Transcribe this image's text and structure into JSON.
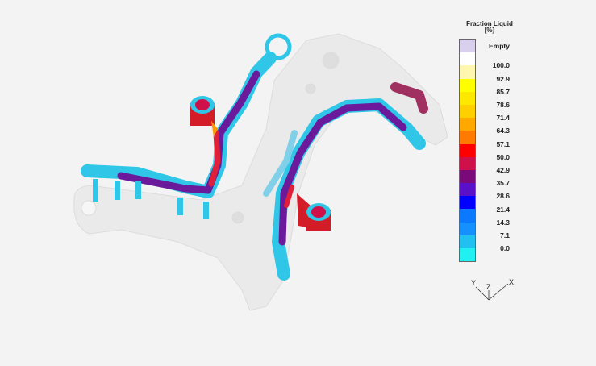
{
  "legend": {
    "title_line1": "Fraction Liquid",
    "title_line2": "[%]",
    "labels": [
      "Empty",
      "100.0",
      "92.9",
      "85.7",
      "78.6",
      "71.4",
      "64.3",
      "57.1",
      "50.0",
      "42.9",
      "35.7",
      "28.6",
      "21.4",
      "14.3",
      "7.1",
      "0.0"
    ],
    "band_colors": [
      "#d8d0ec",
      "#ffffff",
      "#fff7b0",
      "#ffff00",
      "#ffe800",
      "#ffd000",
      "#ffa800",
      "#ff7a00",
      "#ff0000",
      "#d0104a",
      "#7a0a7a",
      "#5a10c8",
      "#0000ff",
      "#0a78ff",
      "#1590ff",
      "#20c0f0",
      "#20f0f0"
    ]
  },
  "axes": {
    "x_label": "X",
    "y_label": "Y",
    "z_label": "Z"
  },
  "colors": {
    "casting": "#ececec",
    "cool": "#2fc6e8",
    "hot": "#e0203a",
    "mid": "#6a1a9a"
  }
}
